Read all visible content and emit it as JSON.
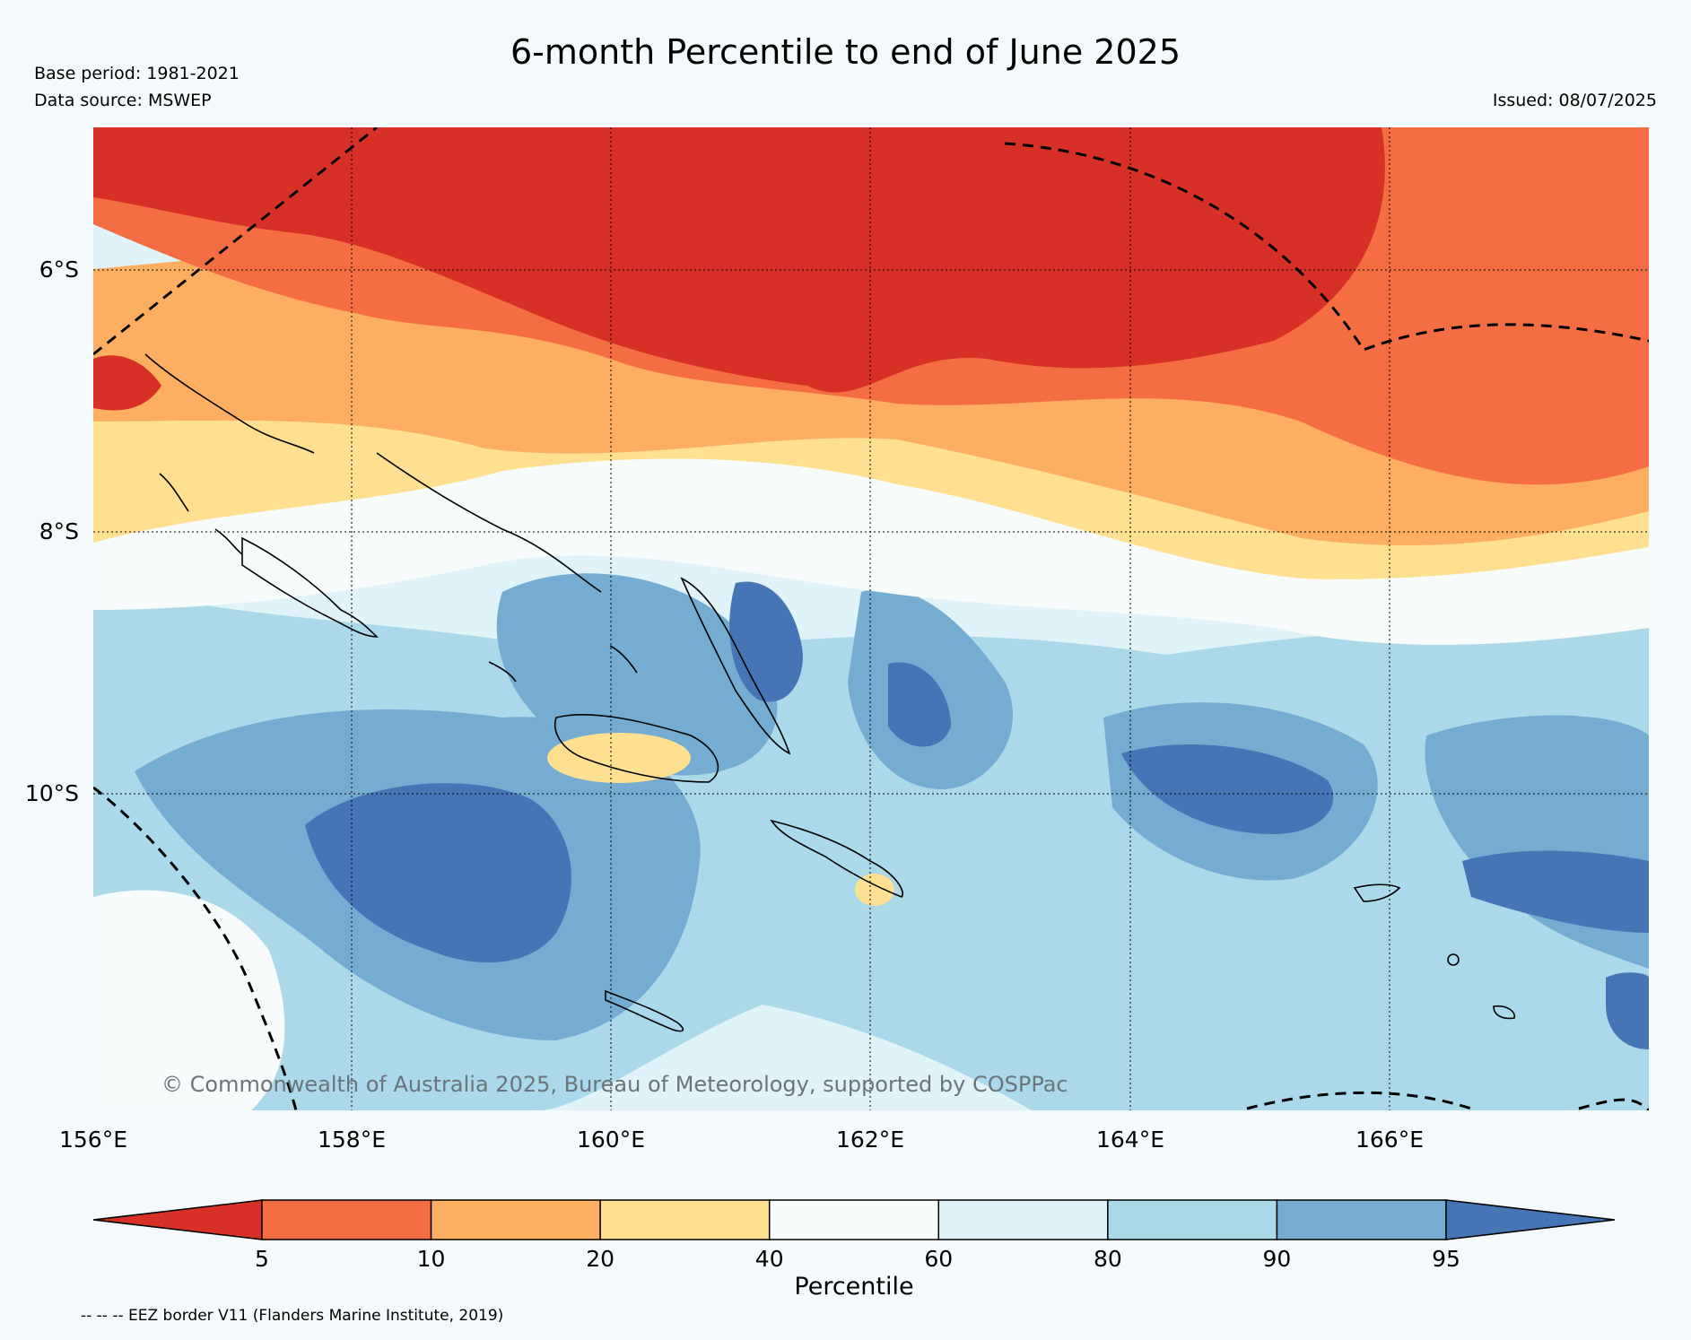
{
  "header": {
    "title": "6-month Percentile to end of June 2025",
    "base_period": "Base period: 1981-2021",
    "data_source": "Data source: MSWEP",
    "issued": "Issued: 08/07/2025"
  },
  "map": {
    "lat_labels": [
      "6°S",
      "8°S",
      "10°S"
    ],
    "lon_labels": [
      "156°E",
      "158°E",
      "160°E",
      "162°E",
      "164°E",
      "166°E"
    ],
    "copyright": "© Commonwealth of Australia 2025, Bureau of Meteorology, supported by COSPPac"
  },
  "colorbar": {
    "label": "Percentile",
    "ticks": [
      "5",
      "10",
      "20",
      "40",
      "60",
      "80",
      "90",
      "95"
    ],
    "colors": [
      "#d73027",
      "#f46d43",
      "#fdae61",
      "#fee090",
      "#f7fbfc",
      "#e0f3f8",
      "#abd9e9",
      "#74add1",
      "#4575b4"
    ]
  },
  "footnote": "-- -- -- EEZ border V11 (Flanders Marine Institute, 2019)"
}
